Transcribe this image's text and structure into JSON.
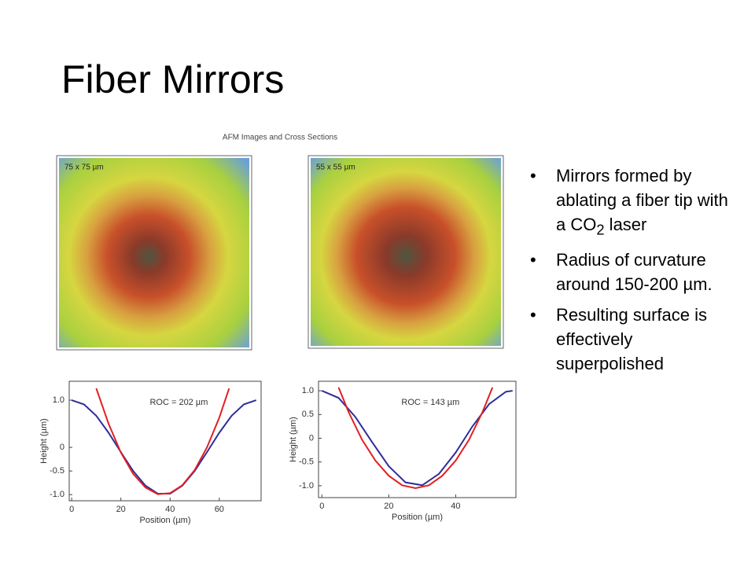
{
  "title": "Fiber Mirrors",
  "bullets": [
    {
      "text": "Mirrors formed by ablating a fiber tip with a CO",
      "sub": "2",
      "after": " laser"
    },
    {
      "text": "Radius of curvature around 150-200 µm."
    },
    {
      "text": "Resulting surface is effectively superpolished"
    }
  ],
  "figure": {
    "title": "AFM Images and Cross Sections",
    "images": [
      {
        "label": "75 x 75 µm"
      },
      {
        "label": "55 x 55 µm"
      }
    ]
  },
  "chart_data": [
    {
      "type": "line",
      "xlabel": "Position (µm)",
      "ylabel": "Height (µm)",
      "annotation": "ROC = 202 µm",
      "xlim": [
        -1,
        77
      ],
      "ylim": [
        -1.13,
        1.4
      ],
      "xticks": [
        0,
        20,
        40,
        60
      ],
      "yticks": [
        {
          "value": -1,
          "label": "-1.0"
        },
        -0.5,
        0,
        {
          "value": 1,
          "label": "1.0"
        }
      ],
      "series": [
        {
          "color": "#2e2e9a",
          "x": [
            0,
            5,
            10,
            15,
            20,
            25,
            30,
            35,
            40,
            45,
            50,
            55,
            60,
            65,
            70,
            75
          ],
          "values": [
            1,
            0.91,
            0.67,
            0.31,
            -0.1,
            -0.5,
            -0.81,
            -0.98,
            -0.98,
            -0.81,
            -0.5,
            -0.1,
            0.31,
            0.67,
            0.91,
            1
          ]
        },
        {
          "color": "#e02020",
          "x": [
            10,
            15,
            20,
            25,
            30,
            35,
            40,
            45,
            50,
            55,
            60,
            64
          ],
          "values": [
            1.25,
            0.5,
            -0.11,
            -0.56,
            -0.85,
            -0.99,
            -0.97,
            -0.8,
            -0.48,
            0,
            0.63,
            1.25
          ]
        }
      ]
    },
    {
      "type": "line",
      "xlabel": "Position (µm)",
      "ylabel": "Height (µm)",
      "annotation": "ROC = 143 µm",
      "xlim": [
        -1,
        58
      ],
      "ylim": [
        -1.25,
        1.2
      ],
      "xticks": [
        0,
        20,
        40
      ],
      "yticks": [
        {
          "value": -1,
          "label": "-1.0"
        },
        -0.5,
        0,
        0.5,
        {
          "value": 1,
          "label": "1.0"
        }
      ],
      "series": [
        {
          "color": "#2e2e9a",
          "x": [
            0,
            5,
            10,
            15,
            20,
            25,
            30,
            35,
            40,
            45,
            50,
            55,
            57
          ],
          "values": [
            1,
            0.85,
            0.45,
            -0.08,
            -0.59,
            -0.93,
            -0.99,
            -0.75,
            -0.3,
            0.25,
            0.72,
            0.98,
            1
          ]
        },
        {
          "color": "#e02020",
          "x": [
            5,
            8,
            12,
            16,
            20,
            24,
            28,
            32,
            36,
            40,
            44,
            48,
            51
          ],
          "values": [
            1.07,
            0.55,
            -0.03,
            -0.47,
            -0.79,
            -0.99,
            -1.05,
            -0.99,
            -0.79,
            -0.47,
            -0.03,
            0.55,
            1.07
          ]
        }
      ]
    }
  ]
}
